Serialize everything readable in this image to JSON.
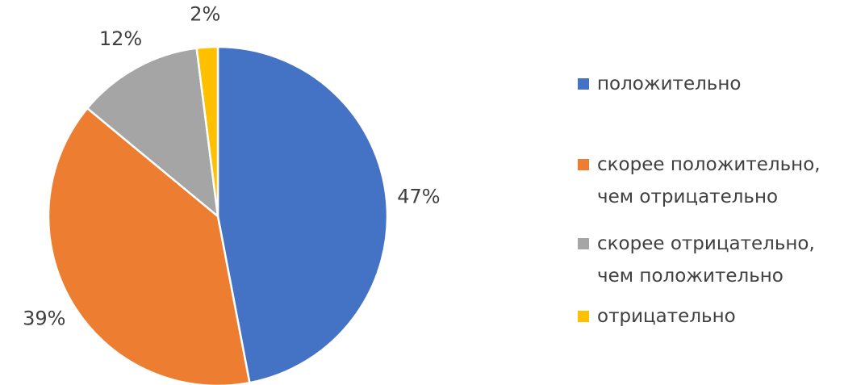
{
  "chart_data": {
    "type": "pie",
    "categories": [
      "положительно",
      "скорее положительно, чем отрицательно",
      "скорее отрицательно, чем положительно",
      "отрицательно"
    ],
    "values": [
      47,
      39,
      12,
      2
    ],
    "value_labels": [
      "47%",
      "39%",
      "12%",
      "2%"
    ],
    "colors": [
      "#4472c4",
      "#ed7d31",
      "#a5a5a5",
      "#ffc000"
    ],
    "legend": "right"
  }
}
